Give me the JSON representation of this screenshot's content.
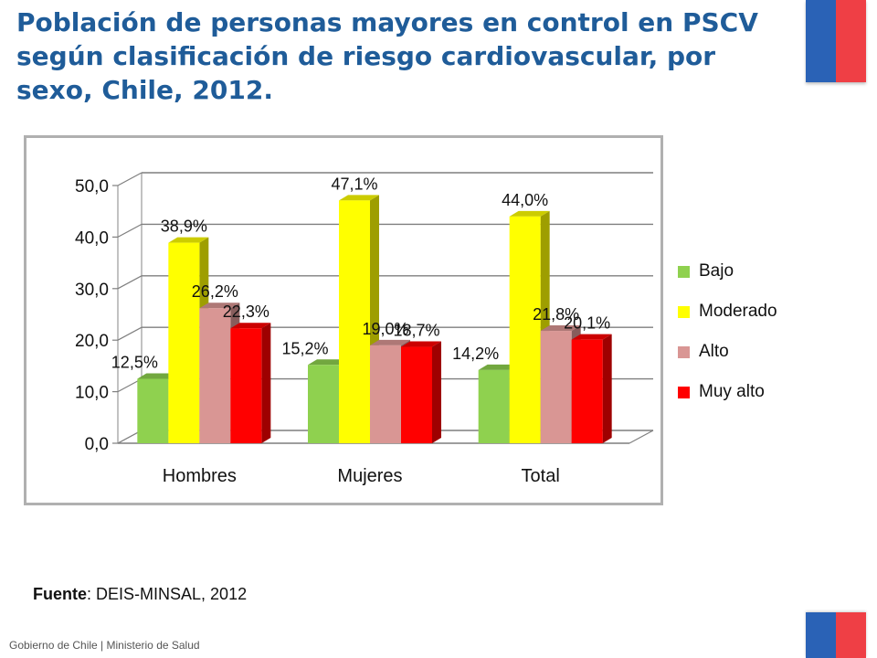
{
  "header": {
    "title": "Población de personas mayores en control en PSCV según clasificación de riesgo cardiovascular, por sexo, Chile, 2012."
  },
  "footer": {
    "source_label": "Fuente",
    "source_text": ": DEIS-MINSAL, 2012",
    "org": "Gobierno de Chile | Ministerio de Salud"
  },
  "flag_colors": {
    "blue": "#2a62b6",
    "red": "#ef3f45"
  },
  "chart_data": {
    "type": "bar",
    "title": "",
    "xlabel": "",
    "ylabel": "",
    "ylim": [
      0,
      50
    ],
    "yticks": [
      "0,0",
      "10,0",
      "20,0",
      "30,0",
      "40,0",
      "50,0"
    ],
    "grid": true,
    "legend_position": "right",
    "categories": [
      "Hombres",
      "Mujeres",
      "Total"
    ],
    "series": [
      {
        "name": "Bajo",
        "color": "#8fd14f",
        "values": [
          12.5,
          15.2,
          14.2
        ],
        "labels": [
          "12,5%",
          "15,2%",
          "14,2%"
        ]
      },
      {
        "name": "Moderado",
        "color": "#ffff00",
        "values": [
          38.9,
          47.1,
          44.0
        ],
        "labels": [
          "38,9%",
          "47,1%",
          "44,0%"
        ]
      },
      {
        "name": "Alto",
        "color": "#d99694",
        "values": [
          26.2,
          19.0,
          21.8
        ],
        "labels": [
          "26,2%",
          "19,0%",
          "21,8%"
        ]
      },
      {
        "name": "Muy alto",
        "color": "#ff0000",
        "values": [
          22.3,
          18.7,
          20.1
        ],
        "labels": [
          "22,3%",
          "18,7%",
          "20,1%"
        ]
      }
    ]
  }
}
